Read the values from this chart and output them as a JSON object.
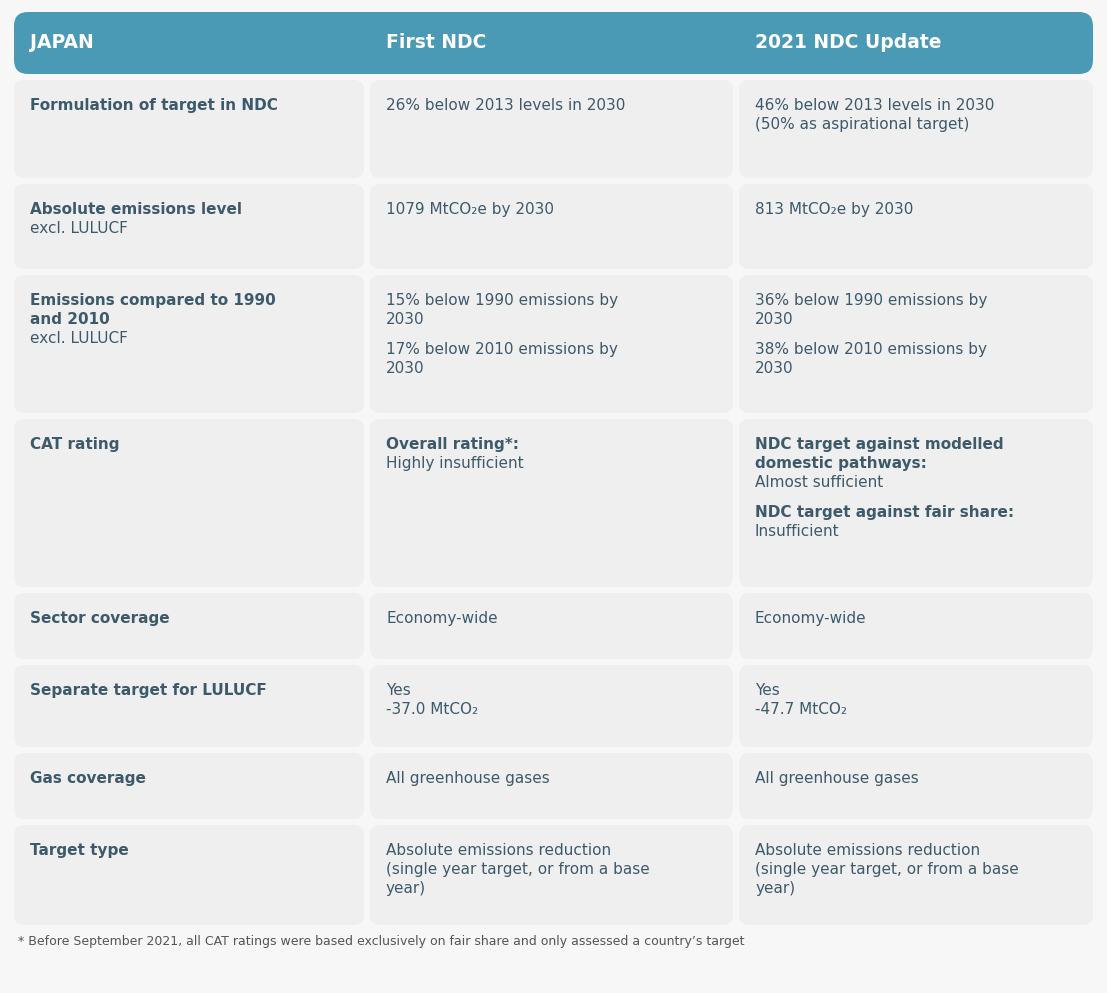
{
  "header_bg_color": "#4a9ab5",
  "header_text_color": "#ffffff",
  "cell_bg_color": "#efefef",
  "text_color": "#3d5a6b",
  "outer_bg_color": "#f7f7f7",
  "footnote_color": "#555555",
  "col_headers": [
    "JAPAN",
    "First NDC",
    "2021 NDC Update"
  ],
  "footnote": "* Before September 2021, all CAT ratings were based exclusively on fair share and only assessed a country’s target",
  "rows": [
    {
      "id": "formulation",
      "col0_lines": [
        {
          "text": "Formulation of target in NDC",
          "bold": true
        }
      ],
      "col1_lines": [
        {
          "text": "26% below 2013 levels in 2030",
          "bold": false
        }
      ],
      "col2_lines": [
        {
          "text": "46% below 2013 levels in 2030",
          "bold": false
        },
        {
          "text": "(50% as aspirational target)",
          "bold": false
        }
      ]
    },
    {
      "id": "absolute",
      "col0_lines": [
        {
          "text": "Absolute emissions level",
          "bold": true
        },
        {
          "text": "excl. LULUCF",
          "bold": false
        }
      ],
      "col1_lines": [
        {
          "text": "1079 MtCO₂e by 2030",
          "bold": false
        }
      ],
      "col2_lines": [
        {
          "text": "813 MtCO₂e by 2030",
          "bold": false
        }
      ]
    },
    {
      "id": "emissions_compared",
      "col0_lines": [
        {
          "text": "Emissions compared to 1990",
          "bold": true
        },
        {
          "text": "and 2010",
          "bold": true
        },
        {
          "text": "excl. LULUCF",
          "bold": false
        }
      ],
      "col1_lines": [
        {
          "text": "15% below 1990 emissions by",
          "bold": false
        },
        {
          "text": "2030",
          "bold": false
        },
        {
          "text": "",
          "bold": false
        },
        {
          "text": "17% below 2010 emissions by",
          "bold": false
        },
        {
          "text": "2030",
          "bold": false
        }
      ],
      "col2_lines": [
        {
          "text": "36% below 1990 emissions by",
          "bold": false
        },
        {
          "text": "2030",
          "bold": false
        },
        {
          "text": "",
          "bold": false
        },
        {
          "text": "38% below 2010 emissions by",
          "bold": false
        },
        {
          "text": "2030",
          "bold": false
        }
      ]
    },
    {
      "id": "cat_rating",
      "col0_lines": [
        {
          "text": "CAT rating",
          "bold": true
        }
      ],
      "col1_lines": [
        {
          "text": "Overall rating*:",
          "bold": true
        },
        {
          "text": "Highly insufficient",
          "bold": false
        }
      ],
      "col2_lines": [
        {
          "text": "NDC target against modelled",
          "bold": true
        },
        {
          "text": "domestic pathways:",
          "bold": true
        },
        {
          "text": "Almost sufficient",
          "bold": false
        },
        {
          "text": "",
          "bold": false
        },
        {
          "text": "NDC target against fair share:",
          "bold": true
        },
        {
          "text": "Insufficient",
          "bold": false
        }
      ]
    },
    {
      "id": "sector_coverage",
      "col0_lines": [
        {
          "text": "Sector coverage",
          "bold": true
        }
      ],
      "col1_lines": [
        {
          "text": "Economy-wide",
          "bold": false
        }
      ],
      "col2_lines": [
        {
          "text": "Economy-wide",
          "bold": false
        }
      ]
    },
    {
      "id": "lulucf",
      "col0_lines": [
        {
          "text": "Separate target for LULUCF",
          "bold": true
        }
      ],
      "col1_lines": [
        {
          "text": "Yes",
          "bold": false
        },
        {
          "text": "-37.0 MtCO₂",
          "bold": false
        }
      ],
      "col2_lines": [
        {
          "text": "Yes",
          "bold": false
        },
        {
          "text": "-47.7 MtCO₂",
          "bold": false
        }
      ]
    },
    {
      "id": "gas_coverage",
      "col0_lines": [
        {
          "text": "Gas coverage",
          "bold": true
        }
      ],
      "col1_lines": [
        {
          "text": "All greenhouse gases",
          "bold": false
        }
      ],
      "col2_lines": [
        {
          "text": "All greenhouse gases",
          "bold": false
        }
      ]
    },
    {
      "id": "target_type",
      "col0_lines": [
        {
          "text": "Target type",
          "bold": true
        }
      ],
      "col1_lines": [
        {
          "text": "Absolute emissions reduction",
          "bold": false
        },
        {
          "text": "(single year target, or from a base",
          "bold": false
        },
        {
          "text": "year)",
          "bold": false
        }
      ],
      "col2_lines": [
        {
          "text": "Absolute emissions reduction",
          "bold": false
        },
        {
          "text": "(single year target, or from a base",
          "bold": false
        },
        {
          "text": "year)",
          "bold": false
        }
      ]
    }
  ]
}
